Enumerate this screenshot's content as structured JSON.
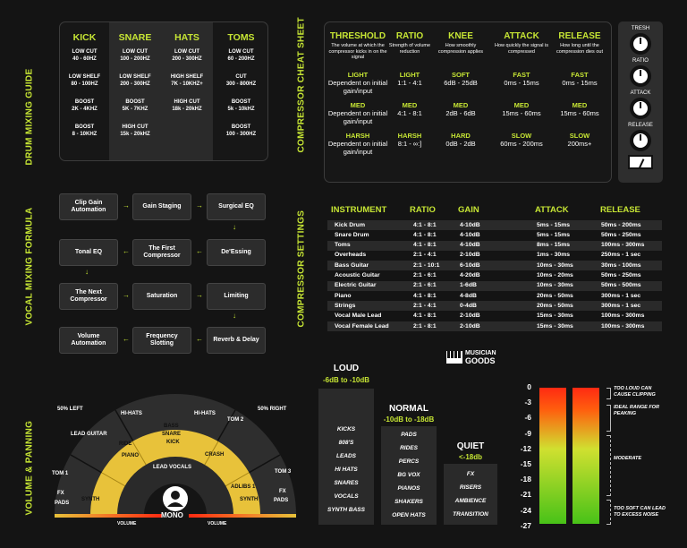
{
  "colors": {
    "accent": "#c6e534",
    "yellow": "#e8c23a",
    "background": "#141414"
  },
  "drum_guide": {
    "title": "DRUM MIXING GUIDE",
    "columns": [
      {
        "name": "KICK",
        "cells": [
          "LOW CUT\n40 - 60HZ",
          "LOW SHELF\n80 - 100HZ",
          "BOOST\n2K - 4KHZ",
          "BOOST\n8 - 10KHZ"
        ]
      },
      {
        "name": "SNARE",
        "cells": [
          "LOW CUT\n100 - 200HZ",
          "LOW SHELF\n200 - 300HZ",
          "BOOST\n5K - 7KHZ",
          "HIGH CUT\n15k - 20kHZ"
        ]
      },
      {
        "name": "HATS",
        "cells": [
          "LOW CUT\n200 - 300HZ",
          "HIGH SHELF\n7K - 10KHZ+",
          "HIGH CUT\n18k - 20kHZ",
          ""
        ]
      },
      {
        "name": "TOMS",
        "cells": [
          "LOW CUT\n60 - 200HZ",
          "CUT\n300 - 800HZ",
          "BOOST\n5k - 10kHZ",
          "BOOST\n100 - 300HZ"
        ]
      }
    ]
  },
  "cheat_sheet": {
    "title": "COMPRESSOR CHEAT SHEET",
    "columns": [
      {
        "name": "THRESHOLD",
        "desc": "The volume at which the compressor kicks in on the signal",
        "rows": [
          [
            "LIGHT",
            "Dependent on initial gain/input"
          ],
          [
            "MED",
            "Dependent on initial gain/input"
          ],
          [
            "HARSH",
            "Dependent on initial gain/input"
          ]
        ]
      },
      {
        "name": "RATIO",
        "desc": "Strength of volume reduction",
        "rows": [
          [
            "LIGHT",
            "1:1 - 4:1"
          ],
          [
            "MED",
            "4:1 - 8:1"
          ],
          [
            "HARSH",
            "8:1 - ∞:]"
          ]
        ]
      },
      {
        "name": "KNEE",
        "desc": "How smoothly compression applies",
        "rows": [
          [
            "SOFT",
            "6dB - 25dB"
          ],
          [
            "MED",
            "2dB - 6dB"
          ],
          [
            "HARD",
            "0dB - 2dB"
          ]
        ]
      },
      {
        "name": "ATTACK",
        "desc": "How quickly the signal is compressed",
        "rows": [
          [
            "FAST",
            "0ms - 15ms"
          ],
          [
            "MED",
            "15ms - 60ms"
          ],
          [
            "SLOW",
            "60ms - 200ms"
          ]
        ]
      },
      {
        "name": "RELEASE",
        "desc": "How long until the compression dies out",
        "rows": [
          [
            "FAST",
            "0ms - 15ms"
          ],
          [
            "MED",
            "15ms - 60ms"
          ],
          [
            "SLOW",
            "200ms+"
          ]
        ]
      }
    ],
    "knobs": [
      "TRESH",
      "RATIO",
      "ATTACK",
      "RELEASE"
    ]
  },
  "vocal_formula": {
    "title": "VOCAL MIXING FORMULA",
    "steps": [
      "Clip Gain Automation",
      "Gain Staging",
      "Surgical EQ",
      "De'Essing",
      "The First Compressor",
      "Tonal EQ",
      "The Next Compressor",
      "Saturation",
      "Limiting",
      "Reverb & Delay",
      "Frequency Slotting",
      "Volume Automation"
    ]
  },
  "compressor_settings": {
    "title": "COMPRESSOR SETTINGS",
    "headers": [
      "INSTRUMENT",
      "RATIO",
      "GAIN",
      "ATTACK",
      "RELEASE"
    ],
    "rows": [
      [
        "Kick Drum",
        "4:1 - 8:1",
        "4-10dB",
        "5ms - 15ms",
        "50ms - 200ms"
      ],
      [
        "Snare Drum",
        "4:1 - 8:1",
        "4-10dB",
        "5ms - 15ms",
        "50ms - 250ms"
      ],
      [
        "Toms",
        "4:1 - 8:1",
        "4-10dB",
        "8ms - 15ms",
        "100ms - 300ms"
      ],
      [
        "Overheads",
        "2:1 - 4:1",
        "2-10dB",
        "1ms - 30ms",
        "250ms - 1 sec"
      ],
      [
        "Bass Guitar",
        "2:1 - 10:1",
        "6-10dB",
        "10ms - 30ms",
        "30ms - 100ms"
      ],
      [
        "Acoustic Guitar",
        "2:1 - 6:1",
        "4-20dB",
        "10ms - 20ms",
        "50ms - 250ms"
      ],
      [
        "Electric Guitar",
        "2:1 - 6:1",
        "1-6dB",
        "10ms - 30ms",
        "50ms - 500ms"
      ],
      [
        "Piano",
        "4:1 - 8:1",
        "4-8dB",
        "20ms - 50ms",
        "300ms - 1 sec"
      ],
      [
        "Strings",
        "2:1 - 4:1",
        "0-4dB",
        "20ms - 50ms",
        "300ms - 1 sec"
      ],
      [
        "Vocal Male Lead",
        "4:1 - 8:1",
        "2-10dB",
        "15ms - 30ms",
        "100ms - 300ms"
      ],
      [
        "Vocal Female Lead",
        "2:1 - 8:1",
        "2-10dB",
        "15ms - 30ms",
        "100ms - 300ms"
      ]
    ]
  },
  "brand": {
    "line1": "MUSICIAN",
    "line2": "GOODS"
  },
  "loudness": {
    "loud": {
      "title": "LOUD",
      "range": "-6dB to -10dB",
      "items": [
        "KICKS",
        "808'S",
        "LEADS",
        "HI HATS",
        "SNARES",
        "VOCALS",
        "SYNTH BASS"
      ]
    },
    "normal": {
      "title": "NORMAL",
      "range": "-10dB to -18dB",
      "items": [
        "PADS",
        "RIDES",
        "PERCS",
        "BG VOX",
        "PIANOS",
        "SHAKERS",
        "OPEN HATS"
      ]
    },
    "quiet": {
      "title": "QUIET",
      "range": "<-18db",
      "items": [
        "FX",
        "RISERS",
        "AMBIENCE",
        "TRANSITION"
      ]
    }
  },
  "meter": {
    "scale": [
      "0",
      "-3",
      "-6",
      "-9",
      "-12",
      "-15",
      "-18",
      "-21",
      "-24",
      "-27"
    ],
    "notes": [
      "TOO LOUD CAN CAUSE CLIPPING",
      "IDEAL RANGE FOR PEAKING",
      "MODERATE",
      "TOO SOFT CAN LEAD TO EXCESS NOISE"
    ]
  },
  "panning": {
    "title": "VOLUME & PANNING",
    "left_label": "50% LEFT",
    "right_label": "50% RIGHT",
    "labels": [
      "HI-HATS",
      "HI-HATS",
      "LEAD GUITAR",
      "TOM 2",
      "BASS",
      "SNARE",
      "KICK",
      "RIDE",
      "PIANO",
      "CRASH",
      "LEAD VOCALS",
      "TOM 1",
      "TOM 3",
      "SYNTH",
      "ADLIBS 1",
      "SYNTH",
      "FX",
      "PADS",
      "FX",
      "PADS"
    ],
    "center": "MONO",
    "volume_left": "VOLUME",
    "volume_right": "VOLUME"
  }
}
